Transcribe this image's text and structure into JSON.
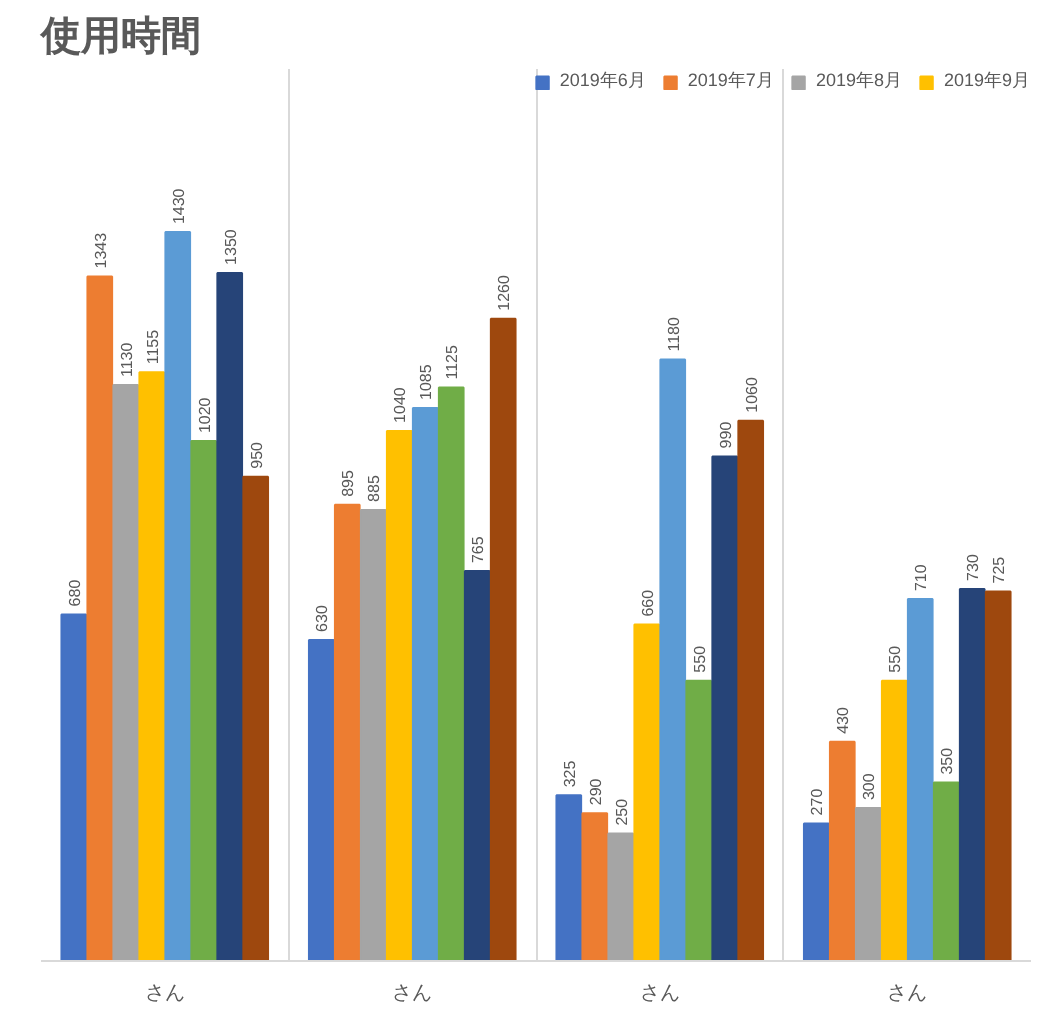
{
  "chart_data": {
    "type": "bar",
    "title": "使用時間",
    "categories": [
      "さん",
      "さん",
      "さん",
      "さん"
    ],
    "series": [
      {
        "name": "2019年6月",
        "color": "#4472c4",
        "values": [
          680,
          630,
          325,
          270
        ]
      },
      {
        "name": "2019年7月",
        "color": "#ed7d31",
        "values": [
          1343,
          895,
          290,
          430
        ]
      },
      {
        "name": "2019年8月",
        "color": "#a5a5a5",
        "values": [
          1130,
          885,
          250,
          300
        ]
      },
      {
        "name": "2019年9月",
        "color": "#ffc000",
        "values": [
          1155,
          1040,
          660,
          550
        ]
      },
      {
        "color": "#5b9bd5",
        "values": [
          1430,
          1085,
          1180,
          710
        ]
      },
      {
        "color": "#70ad47",
        "values": [
          1020,
          1125,
          550,
          350
        ]
      },
      {
        "color": "#264478",
        "values": [
          1350,
          765,
          990,
          730
        ]
      },
      {
        "color": "#9e480e",
        "values": [
          950,
          1260,
          1060,
          725
        ]
      }
    ],
    "ylim": [
      0,
      1750
    ],
    "data_labels": true,
    "grid": "x",
    "legend": "top right",
    "tick_labels": "x"
  }
}
